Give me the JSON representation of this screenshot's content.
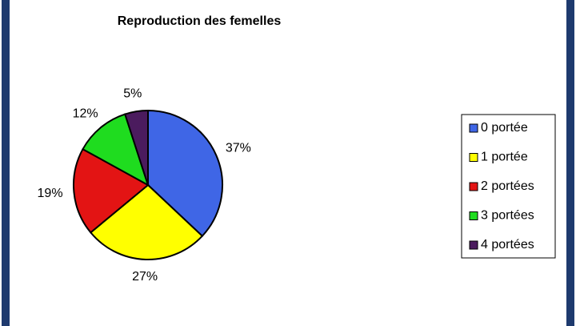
{
  "chart_data": {
    "type": "pie",
    "title": "Reproduction des femelles",
    "categories": [
      "0 portée",
      "1 portée",
      "2 portées",
      "3 portées",
      "4 portées"
    ],
    "values": [
      37,
      27,
      19,
      12,
      5
    ],
    "value_labels": [
      "37%",
      "27%",
      "19%",
      "12%",
      "5%"
    ],
    "colors": [
      "#3f66e6",
      "#ffff00",
      "#e31414",
      "#1fdc1f",
      "#4b1b5e"
    ],
    "legend": "right"
  }
}
